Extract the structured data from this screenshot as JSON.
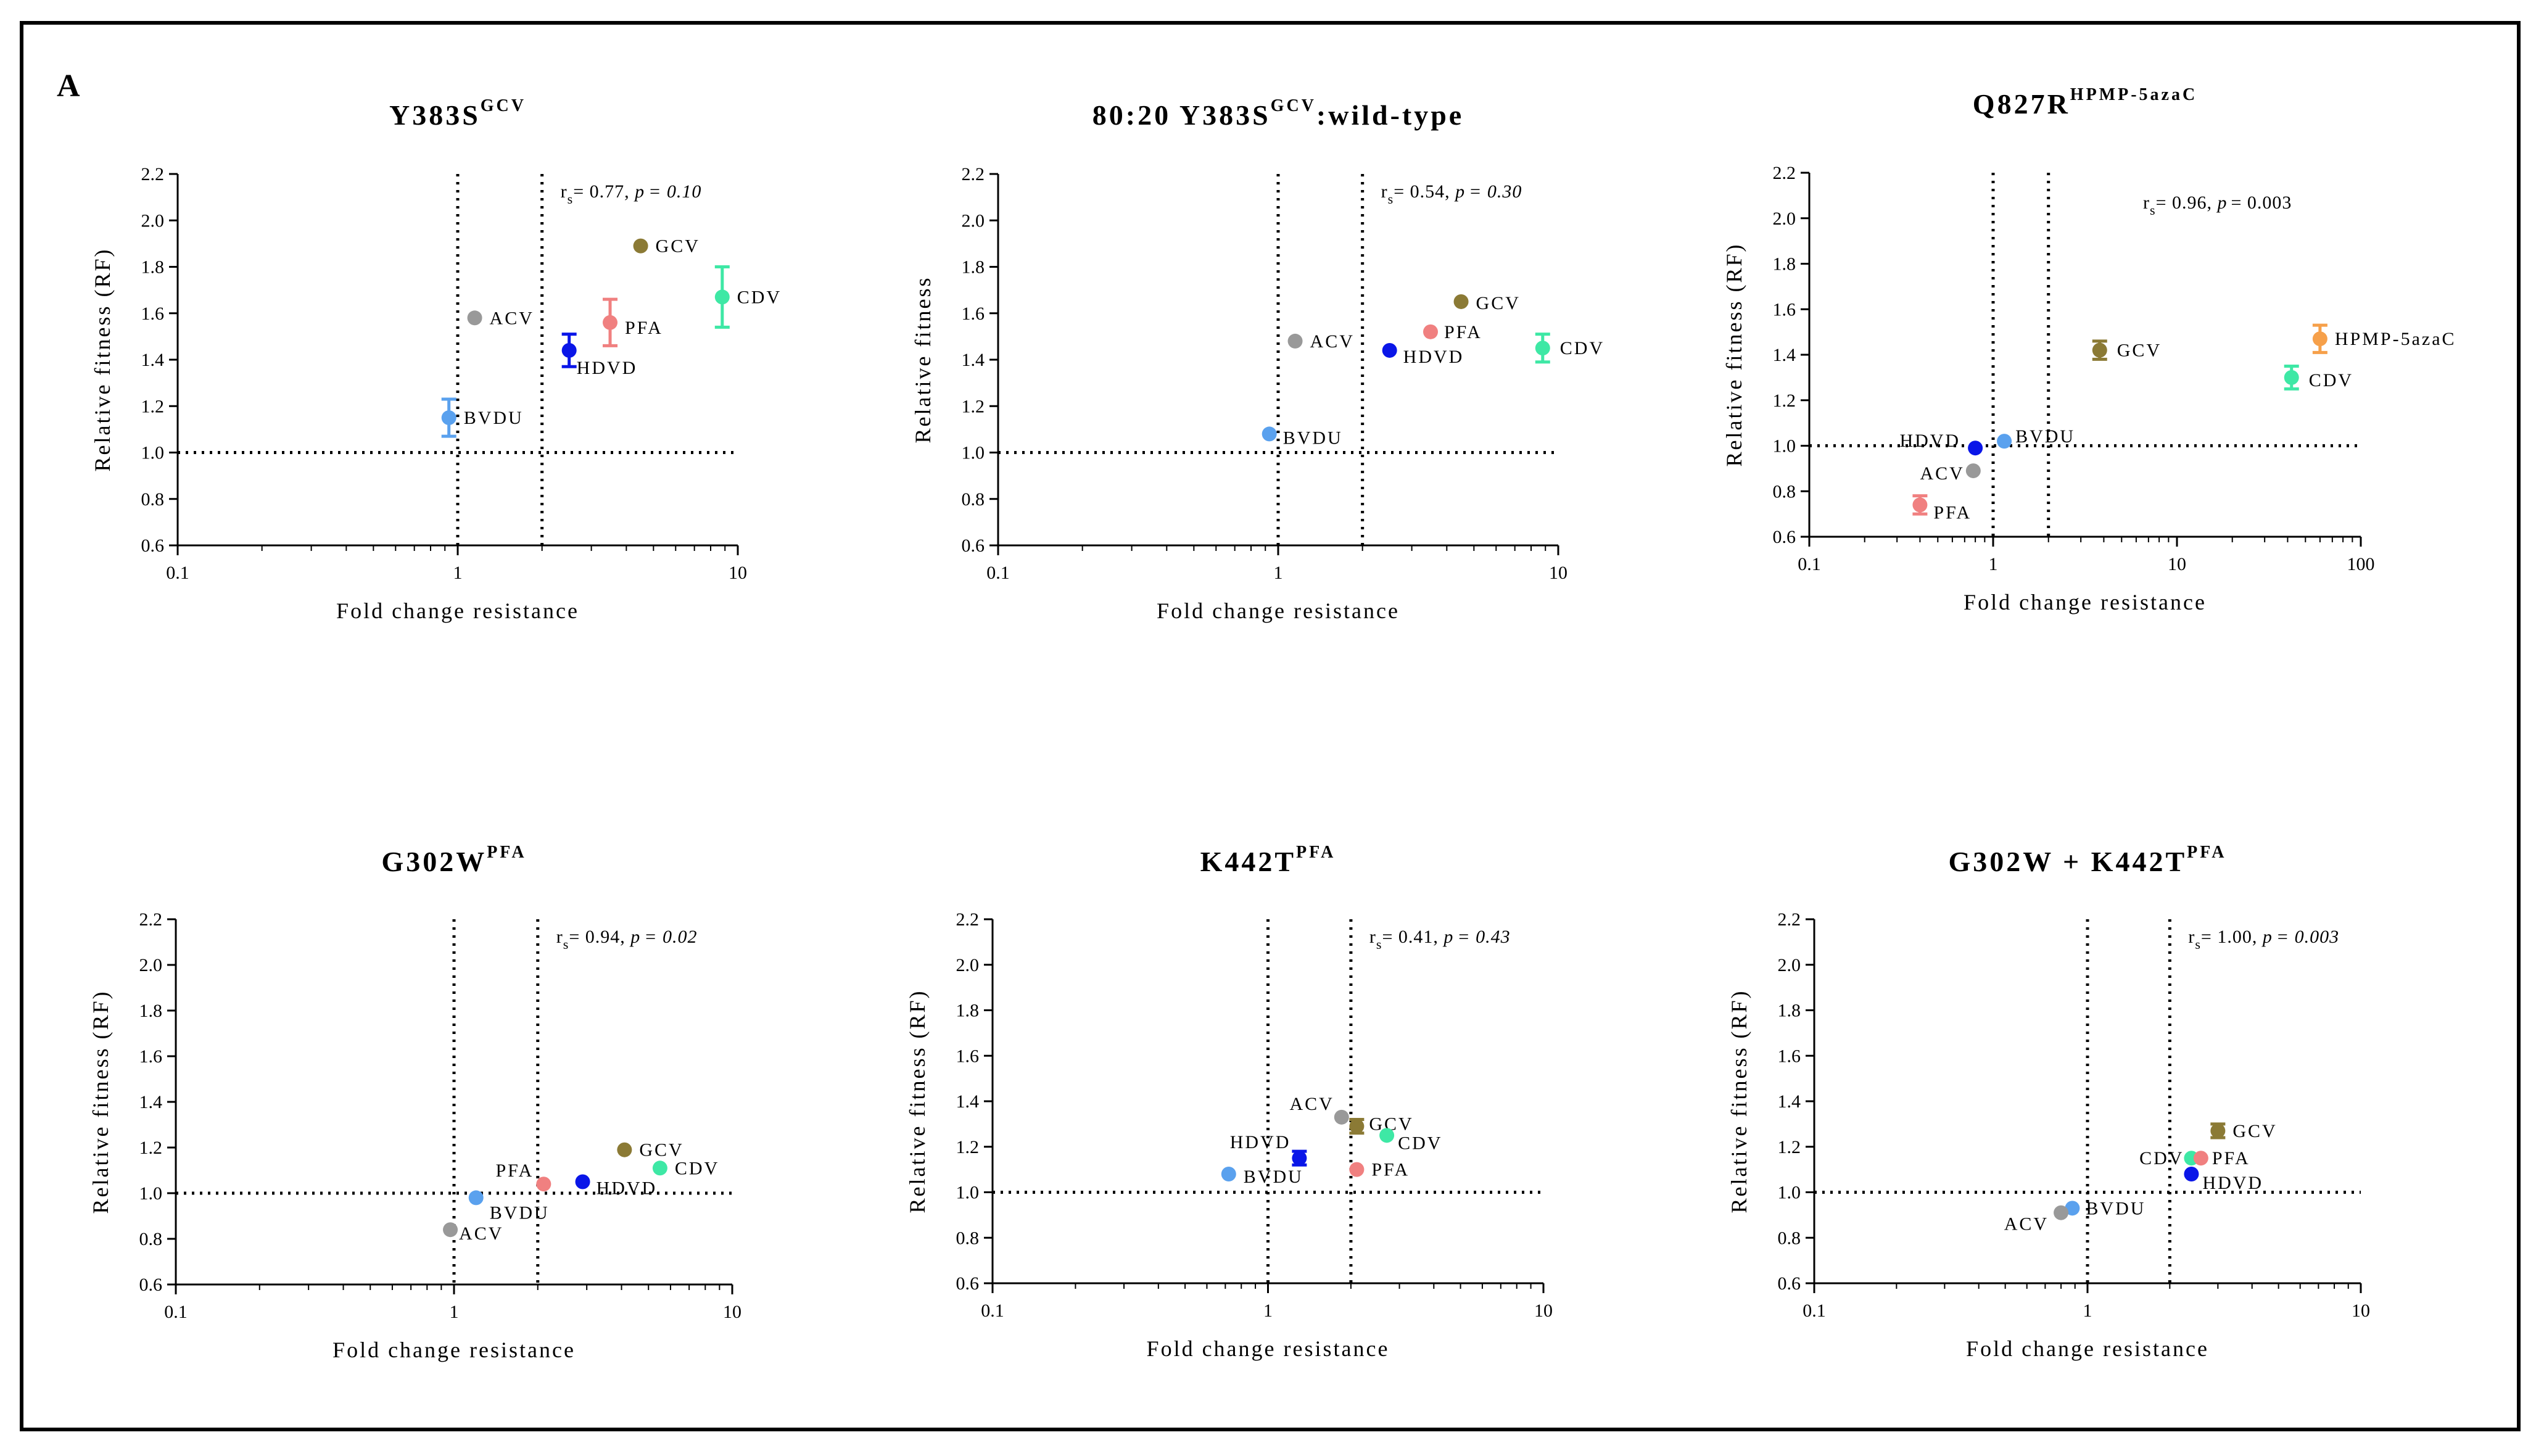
{
  "panel_label": "A",
  "colors": {
    "GCV": "#8b7a35",
    "ACV": "#999999",
    "PFA": "#f08080",
    "HDVD": "#0a16e8",
    "CDV": "#3ee8a5",
    "BVDU": "#5aa1ee",
    "HPMP-5azaC": "#f6a04a"
  },
  "chart_data": [
    {
      "type": "scatter",
      "title": "Y383S",
      "title_sup": "GCV",
      "title_suffix": "",
      "xlabel": "Fold change resistance",
      "ylabel": "Relative fitness (RF)",
      "xscale": "log",
      "xlim": [
        0.1,
        10
      ],
      "xticks": [
        0.1,
        1,
        10
      ],
      "xtick_labels": [
        "0.1",
        "1",
        "10"
      ],
      "ylim": [
        0.6,
        2.2
      ],
      "yticks": [
        "0.6",
        "0.8",
        "1.0",
        "1.2",
        "1.4",
        "1.6",
        "1.8",
        "2.0",
        "2.2"
      ],
      "ref_x": [
        1,
        2
      ],
      "ref_y": 1.0,
      "stat_r": "r",
      "stat_sub": "s",
      "stat_val": "= 0.77, ",
      "stat_p": "p",
      "stat_pval": "= 0.10",
      "stat_italic": true,
      "points": [
        {
          "label": "GCV",
          "x": 4.5,
          "y": 1.89,
          "err": 0
        },
        {
          "label": "CDV",
          "x": 8.8,
          "y": 1.67,
          "err": 0.13
        },
        {
          "label": "ACV",
          "x": 1.15,
          "y": 1.58,
          "err": 0
        },
        {
          "label": "PFA",
          "x": 3.5,
          "y": 1.56,
          "err": 0.1
        },
        {
          "label": "HDVD",
          "x": 2.5,
          "y": 1.44,
          "err": 0.07
        },
        {
          "label": "BVDU",
          "x": 0.93,
          "y": 1.15,
          "err": 0.08
        }
      ]
    },
    {
      "type": "scatter",
      "title": "80:20 Y383S",
      "title_sup": "GCV",
      "title_suffix": ":wild-type",
      "xlabel": "Fold change resistance",
      "ylabel": "Relative fitness",
      "xscale": "log",
      "xlim": [
        0.1,
        10
      ],
      "xticks": [
        0.1,
        1,
        10
      ],
      "xtick_labels": [
        "0.1",
        "1",
        "10"
      ],
      "ylim": [
        0.6,
        2.2
      ],
      "yticks": [
        "0.6",
        "0.8",
        "1.0",
        "1.2",
        "1.4",
        "1.6",
        "1.8",
        "2.0",
        "2.2"
      ],
      "ref_x": [
        1,
        2
      ],
      "ref_y": 1.0,
      "stat_r": "r",
      "stat_sub": "s",
      "stat_val": "= 0.54, ",
      "stat_p": "p",
      "stat_pval": "= 0.30",
      "stat_italic": true,
      "points": [
        {
          "label": "GCV",
          "x": 4.5,
          "y": 1.65,
          "err": 0
        },
        {
          "label": "PFA",
          "x": 3.5,
          "y": 1.52,
          "err": 0
        },
        {
          "label": "ACV",
          "x": 1.15,
          "y": 1.48,
          "err": 0
        },
        {
          "label": "HDVD",
          "x": 2.5,
          "y": 1.44,
          "err": 0
        },
        {
          "label": "CDV",
          "x": 8.8,
          "y": 1.45,
          "err": 0.06
        },
        {
          "label": "BVDU",
          "x": 0.93,
          "y": 1.08,
          "err": 0
        }
      ]
    },
    {
      "type": "scatter",
      "title": "Q827R",
      "title_sup": "HPMP-5azaC",
      "title_suffix": "",
      "xlabel": "Fold change resistance",
      "ylabel": "Relative fitness (RF)",
      "xscale": "log",
      "xlim": [
        0.1,
        100
      ],
      "xticks": [
        0.1,
        1,
        10,
        100
      ],
      "xtick_labels": [
        "0.1",
        "1",
        "10",
        "100"
      ],
      "ylim": [
        0.6,
        2.2
      ],
      "yticks": [
        "0.6",
        "0.8",
        "1.0",
        "1.2",
        "1.4",
        "1.6",
        "1.8",
        "2.0",
        "2.2"
      ],
      "ref_x": [
        1,
        2
      ],
      "ref_y": 1.0,
      "stat_r": "r",
      "stat_sub": "s",
      "stat_val": "= 0.96, ",
      "stat_p": "p",
      "stat_pval": "= 0.003",
      "stat_italic": false,
      "points": [
        {
          "label": "HPMP-5azaC",
          "x": 60,
          "y": 1.47,
          "err": 0.06
        },
        {
          "label": "GCV",
          "x": 3.8,
          "y": 1.42,
          "err": 0.04
        },
        {
          "label": "CDV",
          "x": 42,
          "y": 1.3,
          "err": 0.05
        },
        {
          "label": "HDVD",
          "x": 0.8,
          "y": 0.99,
          "err": 0
        },
        {
          "label": "BVDU",
          "x": 1.15,
          "y": 1.02,
          "err": 0
        },
        {
          "label": "ACV",
          "x": 0.78,
          "y": 0.89,
          "err": 0
        },
        {
          "label": "PFA",
          "x": 0.4,
          "y": 0.74,
          "err": 0.04
        }
      ]
    },
    {
      "type": "scatter",
      "title": "G302W",
      "title_sup": "PFA",
      "title_suffix": "",
      "xlabel": "Fold change resistance",
      "ylabel": "Relative fitness (RF)",
      "xscale": "log",
      "xlim": [
        0.1,
        10
      ],
      "xticks": [
        0.1,
        1,
        10
      ],
      "xtick_labels": [
        "0.1",
        "1",
        "10"
      ],
      "ylim": [
        0.6,
        2.2
      ],
      "yticks": [
        "0.6",
        "0.8",
        "1.0",
        "1.2",
        "1.4",
        "1.6",
        "1.8",
        "2.0",
        "2.2"
      ],
      "ref_x": [
        1,
        2
      ],
      "ref_y": 1.0,
      "stat_r": "r",
      "stat_sub": "s",
      "stat_val": "= 0.94, ",
      "stat_p": "p",
      "stat_pval": "= 0.02",
      "stat_italic": true,
      "points": [
        {
          "label": "GCV",
          "x": 4.1,
          "y": 1.19,
          "err": 0
        },
        {
          "label": "CDV",
          "x": 5.5,
          "y": 1.11,
          "err": 0
        },
        {
          "label": "PFA",
          "x": 2.1,
          "y": 1.04,
          "err": 0
        },
        {
          "label": "HDVD",
          "x": 2.9,
          "y": 1.05,
          "err": 0
        },
        {
          "label": "BVDU",
          "x": 1.2,
          "y": 0.98,
          "err": 0
        },
        {
          "label": "ACV",
          "x": 0.97,
          "y": 0.84,
          "err": 0
        }
      ]
    },
    {
      "type": "scatter",
      "title": "K442T",
      "title_sup": "PFA",
      "title_suffix": "",
      "xlabel": "Fold change resistance",
      "ylabel": "Relative fitness (RF)",
      "xscale": "log",
      "xlim": [
        0.1,
        10
      ],
      "xticks": [
        0.1,
        1,
        10
      ],
      "xtick_labels": [
        "0.1",
        "1",
        "10"
      ],
      "ylim": [
        0.6,
        2.2
      ],
      "yticks": [
        "0.6",
        "0.8",
        "1.0",
        "1.2",
        "1.4",
        "1.6",
        "1.8",
        "2.0",
        "2.2"
      ],
      "ref_x": [
        1,
        2
      ],
      "ref_y": 1.0,
      "stat_r": "r",
      "stat_sub": "s",
      "stat_val": "= 0.41, ",
      "stat_p": "p",
      "stat_pval": "= 0.43",
      "stat_italic": true,
      "points": [
        {
          "label": "ACV",
          "x": 1.85,
          "y": 1.33,
          "err": 0
        },
        {
          "label": "GCV",
          "x": 2.1,
          "y": 1.29,
          "err": 0.03
        },
        {
          "label": "CDV",
          "x": 2.7,
          "y": 1.25,
          "err": 0
        },
        {
          "label": "HDVD",
          "x": 1.3,
          "y": 1.15,
          "err": 0.03
        },
        {
          "label": "BVDU",
          "x": 0.72,
          "y": 1.08,
          "err": 0
        },
        {
          "label": "PFA",
          "x": 2.1,
          "y": 1.1,
          "err": 0
        }
      ]
    },
    {
      "type": "scatter",
      "title": "G302W + K442T",
      "title_sup": "PFA",
      "title_suffix": "",
      "xlabel": "Fold change resistance",
      "ylabel": "Relative fitness (RF)",
      "xscale": "log",
      "xlim": [
        0.1,
        10
      ],
      "xticks": [
        0.1,
        1,
        10
      ],
      "xtick_labels": [
        "0.1",
        "1",
        "10"
      ],
      "ylim": [
        0.6,
        2.2
      ],
      "yticks": [
        "0.6",
        "0.8",
        "1.0",
        "1.2",
        "1.4",
        "1.6",
        "1.8",
        "2.0",
        "2.2"
      ],
      "ref_x": [
        1,
        2
      ],
      "ref_y": 1.0,
      "stat_r": "r",
      "stat_sub": "s",
      "stat_val": "= 1.00, ",
      "stat_p": "p",
      "stat_pval": "= 0.003",
      "stat_italic": true,
      "points": [
        {
          "label": "GCV",
          "x": 3.0,
          "y": 1.27,
          "err": 0.03
        },
        {
          "label": "CDV",
          "x": 2.4,
          "y": 1.15,
          "err": 0
        },
        {
          "label": "PFA",
          "x": 2.6,
          "y": 1.15,
          "err": 0
        },
        {
          "label": "HDVD",
          "x": 2.4,
          "y": 1.08,
          "err": 0
        },
        {
          "label": "BVDU",
          "x": 0.88,
          "y": 0.93,
          "err": 0
        },
        {
          "label": "ACV",
          "x": 0.8,
          "y": 0.91,
          "err": 0
        }
      ]
    }
  ]
}
